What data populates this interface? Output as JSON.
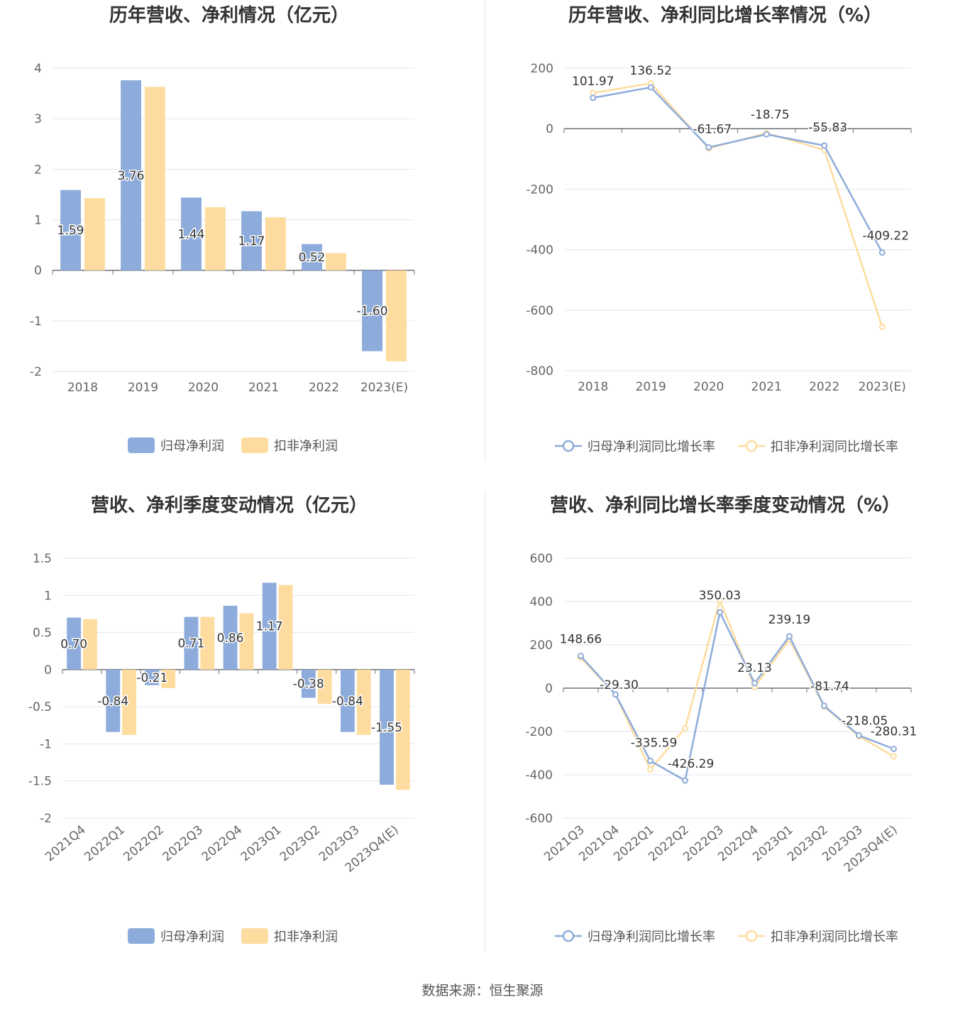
{
  "colors": {
    "series1": "#8eacdb",
    "series2": "#fedc9f",
    "axis": "#6e7079",
    "grid": "#e0e6f1"
  },
  "source_text": "数据来源：恒生聚源",
  "chart_data": [
    {
      "type": "bar",
      "title": "历年营收、净利情况（亿元）",
      "categories": [
        "2018",
        "2019",
        "2020",
        "2021",
        "2022",
        "2023(E)"
      ],
      "yticks": [
        "4",
        "3",
        "2",
        "1",
        "0",
        "-1",
        "-2"
      ],
      "ylim": [
        -2,
        4
      ],
      "series": [
        {
          "name": "归母净利润",
          "values": [
            1.59,
            3.76,
            1.44,
            1.17,
            0.52,
            -1.6
          ],
          "labels": [
            "1.59",
            "3.76",
            "1.44",
            "1.17",
            "0.52",
            "-1.60"
          ]
        },
        {
          "name": "扣非净利润",
          "values": [
            1.43,
            3.63,
            1.25,
            1.05,
            0.34,
            -1.8
          ]
        }
      ],
      "legend": "bottom"
    },
    {
      "type": "line",
      "title": "历年营收、净利同比增长率情况（%）",
      "categories": [
        "2018",
        "2019",
        "2020",
        "2021",
        "2022",
        "2023(E)"
      ],
      "yticks": [
        "200",
        "0",
        "-200",
        "-400",
        "-600",
        "-800"
      ],
      "ylim": [
        -800,
        200
      ],
      "series": [
        {
          "name": "归母净利润同比增长率",
          "values": [
            101.97,
            136.52,
            -61.67,
            -18.75,
            -55.83,
            -409.22
          ],
          "labels": [
            "101.97",
            "136.52",
            "-61.67",
            "-18.75",
            "-55.83",
            "-409.22"
          ]
        },
        {
          "name": "扣非净利润同比增长率",
          "values": [
            118,
            150,
            -65,
            -15,
            -70,
            -655
          ]
        }
      ],
      "legend": "bottom"
    },
    {
      "type": "bar",
      "title": "营收、净利季度变动情况（亿元）",
      "categories": [
        "2021Q4",
        "2022Q1",
        "2022Q2",
        "2022Q3",
        "2022Q4",
        "2023Q1",
        "2023Q2",
        "2023Q3",
        "2023Q4(E)"
      ],
      "yticks": [
        "1.5",
        "1",
        "0.5",
        "0",
        "-0.5",
        "-1",
        "-1.5",
        "-2"
      ],
      "ylim": [
        -2,
        1.5
      ],
      "series": [
        {
          "name": "归母净利润",
          "values": [
            0.7,
            -0.84,
            -0.21,
            0.71,
            0.86,
            1.17,
            -0.38,
            -0.84,
            -1.55
          ],
          "labels": [
            "0.70",
            "-0.84",
            "-0.21",
            "0.71",
            "0.86",
            "1.17",
            "-0.38",
            "-0.84",
            "-1.55"
          ]
        },
        {
          "name": "扣非净利润",
          "values": [
            0.68,
            -0.88,
            -0.25,
            0.71,
            0.76,
            1.14,
            -0.46,
            -0.88,
            -1.62
          ]
        }
      ],
      "legend": "bottom"
    },
    {
      "type": "line",
      "title": "营收、净利同比增长率季度变动情况（%）",
      "categories": [
        "2021Q3",
        "2021Q4",
        "2022Q1",
        "2022Q2",
        "2022Q3",
        "2022Q4",
        "2023Q1",
        "2023Q2",
        "2023Q3",
        "2023Q4(E)"
      ],
      "yticks": [
        "600",
        "400",
        "200",
        "0",
        "-200",
        "-400",
        "-600"
      ],
      "ylim": [
        -600,
        600
      ],
      "series": [
        {
          "name": "归母净利润同比增长率",
          "values": [
            148.66,
            -29.3,
            -335.59,
            -426.29,
            350.03,
            23.13,
            239.19,
            -81.74,
            -218.05,
            -280.31
          ],
          "labels": [
            "148.66",
            "-29.30",
            "-335.59",
            "-426.29",
            "350.03",
            "23.13",
            "239.19",
            "-81.74",
            "-218.05",
            "-280.31"
          ]
        },
        {
          "name": "扣非净利润同比增长率",
          "values": [
            140,
            -30,
            -375,
            -185,
            405,
            5,
            225,
            -85,
            -222,
            -315
          ]
        }
      ],
      "legend": "bottom"
    }
  ]
}
